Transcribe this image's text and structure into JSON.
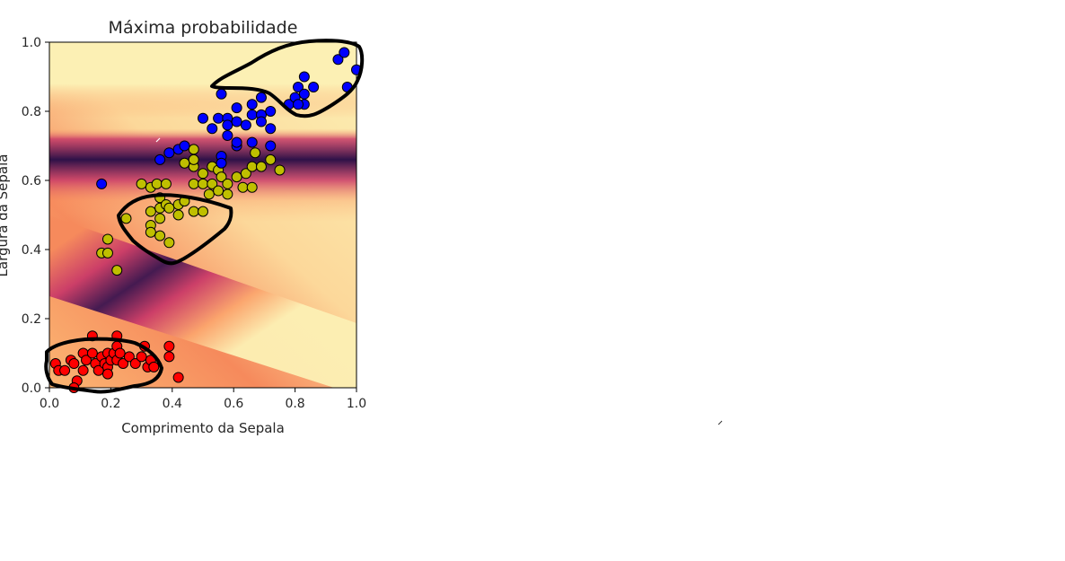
{
  "chart_data": {
    "type": "scatter",
    "title": "Máxima probabilidade",
    "xlabel": "Comprimento da Sepala",
    "ylabel": "Largura da Sepala",
    "xlim": [
      0.0,
      1.0
    ],
    "ylim": [
      0.0,
      1.0
    ],
    "xticks": [
      "0.0",
      "0.2",
      "0.4",
      "0.6",
      "0.8",
      "1.0"
    ],
    "yticks": [
      "0.0",
      "0.2",
      "0.4",
      "0.6",
      "0.8",
      "1.0"
    ],
    "grid": false,
    "legend": "none",
    "background": {
      "type": "heatmap",
      "colormap": "magma",
      "description_colors": [
        "#fcf0b4",
        "#f98c5e",
        "#c93a68",
        "#6b1e74",
        "#2e1148"
      ]
    },
    "series": [
      {
        "color": "#ff0000",
        "points": [
          [
            0.02,
            0.07
          ],
          [
            0.03,
            0.05
          ],
          [
            0.05,
            0.05
          ],
          [
            0.07,
            0.08
          ],
          [
            0.08,
            0.07
          ],
          [
            0.09,
            0.02
          ],
          [
            0.11,
            0.1
          ],
          [
            0.11,
            0.05
          ],
          [
            0.12,
            0.08
          ],
          [
            0.14,
            0.15
          ],
          [
            0.14,
            0.1
          ],
          [
            0.15,
            0.07
          ],
          [
            0.16,
            0.05
          ],
          [
            0.17,
            0.09
          ],
          [
            0.18,
            0.07
          ],
          [
            0.19,
            0.1
          ],
          [
            0.19,
            0.06
          ],
          [
            0.19,
            0.04
          ],
          [
            0.2,
            0.08
          ],
          [
            0.21,
            0.1
          ],
          [
            0.22,
            0.15
          ],
          [
            0.22,
            0.12
          ],
          [
            0.22,
            0.08
          ],
          [
            0.23,
            0.1
          ],
          [
            0.24,
            0.07
          ],
          [
            0.26,
            0.09
          ],
          [
            0.28,
            0.07
          ],
          [
            0.3,
            0.09
          ],
          [
            0.31,
            0.12
          ],
          [
            0.32,
            0.06
          ],
          [
            0.33,
            0.08
          ],
          [
            0.34,
            0.06
          ],
          [
            0.39,
            0.12
          ],
          [
            0.39,
            0.09
          ],
          [
            0.42,
            0.03
          ],
          [
            0.08,
            0.0
          ]
        ]
      },
      {
        "color": "#bfbf00",
        "points": [
          [
            0.17,
            0.39
          ],
          [
            0.19,
            0.43
          ],
          [
            0.19,
            0.39
          ],
          [
            0.22,
            0.34
          ],
          [
            0.25,
            0.49
          ],
          [
            0.3,
            0.59
          ],
          [
            0.33,
            0.58
          ],
          [
            0.33,
            0.51
          ],
          [
            0.33,
            0.47
          ],
          [
            0.33,
            0.45
          ],
          [
            0.35,
            0.59
          ],
          [
            0.36,
            0.55
          ],
          [
            0.36,
            0.52
          ],
          [
            0.36,
            0.49
          ],
          [
            0.36,
            0.44
          ],
          [
            0.38,
            0.59
          ],
          [
            0.38,
            0.53
          ],
          [
            0.39,
            0.42
          ],
          [
            0.39,
            0.52
          ],
          [
            0.42,
            0.53
          ],
          [
            0.42,
            0.5
          ],
          [
            0.44,
            0.54
          ],
          [
            0.44,
            0.65
          ],
          [
            0.47,
            0.51
          ],
          [
            0.47,
            0.59
          ],
          [
            0.47,
            0.64
          ],
          [
            0.47,
            0.69
          ],
          [
            0.5,
            0.51
          ],
          [
            0.5,
            0.59
          ],
          [
            0.5,
            0.62
          ],
          [
            0.52,
            0.56
          ],
          [
            0.53,
            0.59
          ],
          [
            0.53,
            0.64
          ],
          [
            0.55,
            0.57
          ],
          [
            0.55,
            0.63
          ],
          [
            0.56,
            0.61
          ],
          [
            0.58,
            0.59
          ],
          [
            0.58,
            0.56
          ],
          [
            0.61,
            0.61
          ],
          [
            0.63,
            0.58
          ],
          [
            0.64,
            0.62
          ],
          [
            0.66,
            0.58
          ],
          [
            0.66,
            0.64
          ],
          [
            0.67,
            0.68
          ],
          [
            0.69,
            0.64
          ],
          [
            0.72,
            0.66
          ],
          [
            0.75,
            0.63
          ],
          [
            0.47,
            0.66
          ]
        ]
      },
      {
        "color": "#0000ff",
        "points": [
          [
            0.17,
            0.59
          ],
          [
            0.36,
            0.66
          ],
          [
            0.39,
            0.68
          ],
          [
            0.42,
            0.69
          ],
          [
            0.44,
            0.7
          ],
          [
            0.5,
            0.78
          ],
          [
            0.53,
            0.75
          ],
          [
            0.55,
            0.78
          ],
          [
            0.56,
            0.85
          ],
          [
            0.56,
            0.67
          ],
          [
            0.56,
            0.65
          ],
          [
            0.58,
            0.78
          ],
          [
            0.58,
            0.76
          ],
          [
            0.58,
            0.73
          ],
          [
            0.61,
            0.81
          ],
          [
            0.61,
            0.77
          ],
          [
            0.61,
            0.7
          ],
          [
            0.61,
            0.71
          ],
          [
            0.64,
            0.76
          ],
          [
            0.66,
            0.82
          ],
          [
            0.66,
            0.79
          ],
          [
            0.66,
            0.71
          ],
          [
            0.69,
            0.84
          ],
          [
            0.69,
            0.79
          ],
          [
            0.69,
            0.77
          ],
          [
            0.72,
            0.8
          ],
          [
            0.72,
            0.75
          ],
          [
            0.72,
            0.7
          ],
          [
            0.78,
            0.82
          ],
          [
            0.8,
            0.84
          ],
          [
            0.81,
            0.87
          ],
          [
            0.83,
            0.85
          ],
          [
            0.83,
            0.82
          ],
          [
            0.83,
            0.9
          ],
          [
            0.86,
            0.87
          ],
          [
            0.94,
            0.95
          ],
          [
            0.96,
            0.97
          ],
          [
            0.97,
            0.87
          ],
          [
            1.0,
            0.92
          ],
          [
            0.81,
            0.82
          ]
        ]
      }
    ]
  }
}
